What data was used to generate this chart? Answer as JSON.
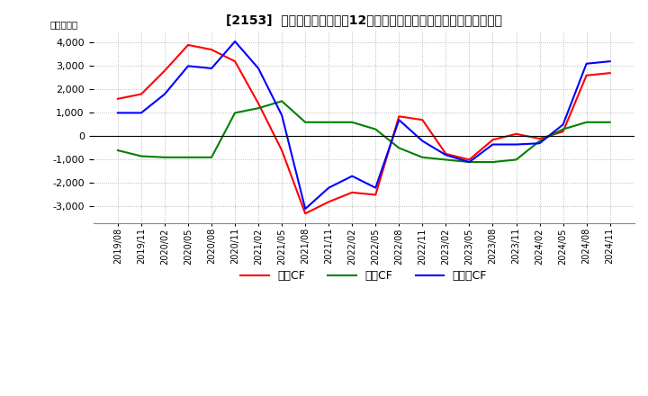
{
  "title": "[2153]  キャッシュフローの12か月移動合計の対前年同期増減額の推移",
  "ylabel": "（百万円）",
  "ylim": [
    -3700,
    4500
  ],
  "yticks": [
    -3000,
    -2000,
    -1000,
    0,
    1000,
    2000,
    3000,
    4000
  ],
  "dates": [
    "2019/08",
    "2019/11",
    "2020/02",
    "2020/05",
    "2020/08",
    "2020/11",
    "2021/02",
    "2021/05",
    "2021/08",
    "2021/11",
    "2022/02",
    "2022/05",
    "2022/08",
    "2022/11",
    "2023/02",
    "2023/05",
    "2023/08",
    "2023/11",
    "2024/02",
    "2024/05",
    "2024/08",
    "2024/11"
  ],
  "operating_cf": [
    1600,
    1800,
    2800,
    3900,
    3700,
    3200,
    1400,
    -600,
    -3300,
    -2800,
    -2400,
    -2500,
    850,
    700,
    -750,
    -1000,
    -150,
    100,
    -100,
    200,
    2600,
    2700
  ],
  "investing_cf": [
    -600,
    -850,
    -900,
    -900,
    -900,
    1000,
    1200,
    1500,
    600,
    600,
    600,
    300,
    -500,
    -900,
    -1000,
    -1100,
    -1100,
    -1000,
    -200,
    300,
    600,
    600
  ],
  "free_cf": [
    1000,
    1000,
    1800,
    3000,
    2900,
    4050,
    2900,
    900,
    -3100,
    -2200,
    -1700,
    -2200,
    700,
    -200,
    -800,
    -1100,
    -350,
    -350,
    -300,
    500,
    3100,
    3200
  ],
  "operating_color": "#ff0000",
  "investing_color": "#008000",
  "free_cf_color": "#0000ff",
  "bg_color": "#ffffff",
  "grid_color": "#aaaaaa"
}
